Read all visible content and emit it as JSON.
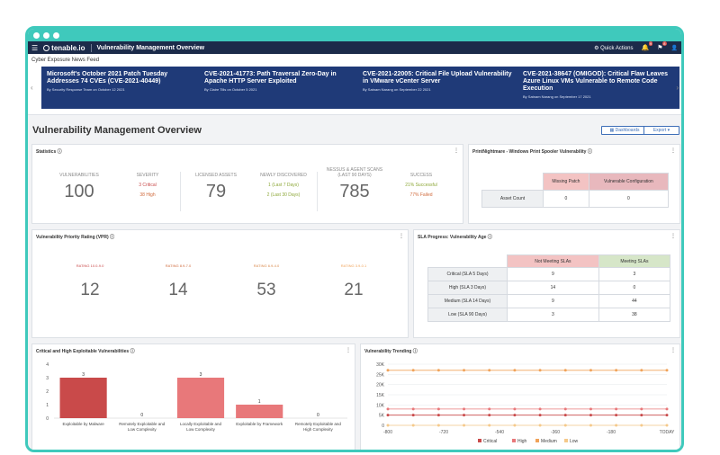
{
  "topbar": {
    "brand": "tenable.io",
    "title": "Vulnerability Management Overview",
    "quick_actions": "Quick Actions",
    "bell_badge": "9",
    "flag_badge": "8"
  },
  "news": {
    "label": "Cyber Exposure News Feed",
    "cards": [
      {
        "title": "Microsoft's October 2021 Patch Tuesday Addresses 74 CVEs (CVE-2021-40449)",
        "meta": "By Security Response Team on October 12 2021"
      },
      {
        "title": "CVE-2021-41773: Path Traversal Zero-Day in Apache HTTP Server Exploited",
        "meta": "By Claire Tills on October 5 2021"
      },
      {
        "title": "CVE-2021-22005: Critical File Upload Vulnerability in VMware vCenter Server",
        "meta": "By Satnam Narang on September 22 2021"
      },
      {
        "title": "CVE-2021-38647 (OMIGOD): Critical Flaw Leaves Azure Linux VMs Vulnerable to Remote Code Execution",
        "meta": "By Satnam Narang on September 17 2021"
      }
    ]
  },
  "page": {
    "title": "Vulnerability Management Overview",
    "dashboards": "Dashboards",
    "export": "Export"
  },
  "statistics": {
    "title": "Statistics",
    "vulnerabilities": {
      "label": "VULNERABILITIES",
      "value": "100"
    },
    "severity": {
      "label": "SEVERITY",
      "critical": "3 Critical",
      "high": "38 High"
    },
    "licensed": {
      "label": "LICENSED ASSETS",
      "value": "79"
    },
    "newly": {
      "label": "NEWLY DISCOVERED",
      "last7": "1 (Last 7 Days)",
      "last30": "2 (Last 30 Days)"
    },
    "scans": {
      "label1": "NESSUS & AGENT SCANS",
      "label2": "(LAST 90 DAYS)",
      "value": "785"
    },
    "success": {
      "label": "SUCCESS",
      "successful": "21% Successful",
      "failed": "77% Failed"
    }
  },
  "printnightmare": {
    "title": "PrintNightmare - Windows Print Spooler Vulnerability",
    "col1": "Missing Patch",
    "col2": "Vulnerable Configuration",
    "row": "Asset Count",
    "v1": "0",
    "v2": "0"
  },
  "vpr": {
    "title": "Vulnerability Priority Rating (VPR)",
    "items": [
      {
        "label": "RATING 10.0-9.0",
        "value": "12"
      },
      {
        "label": "RATING 8.9-7.0",
        "value": "14"
      },
      {
        "label": "RATING 6.9-4.0",
        "value": "53"
      },
      {
        "label": "RATING 3.9-0.1",
        "value": "21"
      }
    ]
  },
  "sla": {
    "title": "SLA Progress: Vulnerability Age",
    "headers": [
      "Not Meeting SLAs",
      "Meeting SLAs"
    ],
    "rows": [
      {
        "label": "Critical (SLA 5 Days)",
        "not": "9",
        "meet": "3"
      },
      {
        "label": "High (SLA 3 Days)",
        "not": "14",
        "meet": "0"
      },
      {
        "label": "Medium (SLA 14 Days)",
        "not": "9",
        "meet": "44"
      },
      {
        "label": "Low (SLA 90 Days)",
        "not": "3",
        "meet": "38"
      }
    ]
  },
  "colors": {
    "accent": "#3fc9bc",
    "navy": "#1c2b4a",
    "critical": "#c94a4a",
    "high": "#e8787a",
    "medium": "#f0a35a",
    "low": "#f5c98a"
  },
  "chart_data": [
    {
      "type": "bar",
      "title": "Critical and High Exploitable Vulnerabilities",
      "categories": [
        "Exploitable by Malware",
        "Remotely Exploitable and Low Complexity",
        "Locally Exploitable and Low Complexity",
        "Exploitable by Framework",
        "Remotely Exploitable and High Complexity"
      ],
      "values": [
        3,
        0,
        3,
        1,
        0
      ],
      "ylim": [
        0,
        4
      ],
      "yticks": [
        "0",
        "1",
        "2",
        "3",
        "4"
      ]
    },
    {
      "type": "line",
      "title": "Vulnerability Trending",
      "xticks": [
        "-800",
        "-720",
        "-540",
        "-360",
        "-180",
        "TODAY"
      ],
      "yticks": [
        "0",
        "5K",
        "10K",
        "15K",
        "20K",
        "25K",
        "30K"
      ],
      "ylim": [
        0,
        30000
      ],
      "series": [
        {
          "name": "Critical",
          "color": "#c94a4a",
          "values": [
            5000,
            5000,
            5000,
            5000,
            5000,
            5000,
            5000,
            5000,
            5000,
            5000,
            5000,
            5000
          ]
        },
        {
          "name": "High",
          "color": "#e8787a",
          "values": [
            8000,
            8000,
            8000,
            8000,
            8000,
            8000,
            8000,
            8000,
            8000,
            8000,
            8000,
            8000
          ]
        },
        {
          "name": "Medium",
          "color": "#f0a35a",
          "values": [
            27000,
            27000,
            27000,
            27000,
            27000,
            27000,
            27000,
            27000,
            27000,
            27000,
            27000,
            27000
          ]
        },
        {
          "name": "Low",
          "color": "#f5c98a",
          "values": [
            0,
            0,
            0,
            0,
            0,
            0,
            0,
            0,
            0,
            0,
            0,
            0
          ]
        }
      ]
    }
  ]
}
